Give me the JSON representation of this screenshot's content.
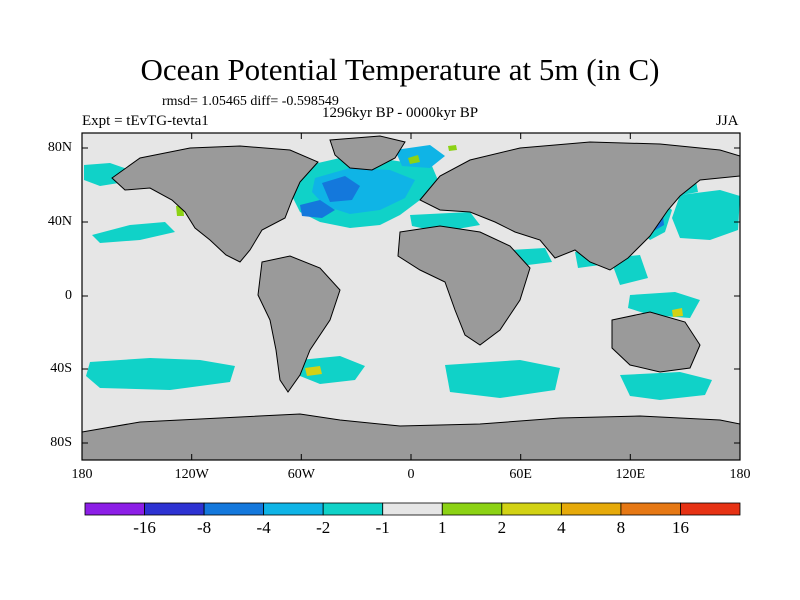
{
  "title": "Ocean Potential Temperature at 5m (in C)",
  "stats": "rmsd= 1.05465 diff= -0.598549",
  "period": "1296kyr BP - 0000kyr BP",
  "experiment": "Expt = tEvTG-tevta1",
  "season": "JJA",
  "y_axis_labels": [
    "80N",
    "40N",
    "0",
    "40S",
    "80S"
  ],
  "x_axis_labels": [
    "180",
    "120W",
    "60W",
    "0",
    "60E",
    "120E",
    "180"
  ],
  "colorbar": {
    "colors": [
      "#8c1ee6",
      "#2d32d2",
      "#1478dc",
      "#0fb4e6",
      "#10d2c8",
      "#e6e6e6",
      "#8cd214",
      "#d2d214",
      "#e6aa0a",
      "#e67814",
      "#e63214"
    ],
    "labels": [
      "-16",
      "-8",
      "-4",
      "-2",
      "-1",
      "1",
      "2",
      "4",
      "8",
      "16"
    ]
  },
  "palette": {
    "land": "#9a9a9a",
    "ocean_neutral": "#e6e6e6",
    "cooling_strong": "#1478dc",
    "cooling_mid": "#0fb4e6",
    "cooling_weak": "#10d2c8",
    "warming_weak": "#8cd214",
    "warming_mid": "#d2d214"
  }
}
